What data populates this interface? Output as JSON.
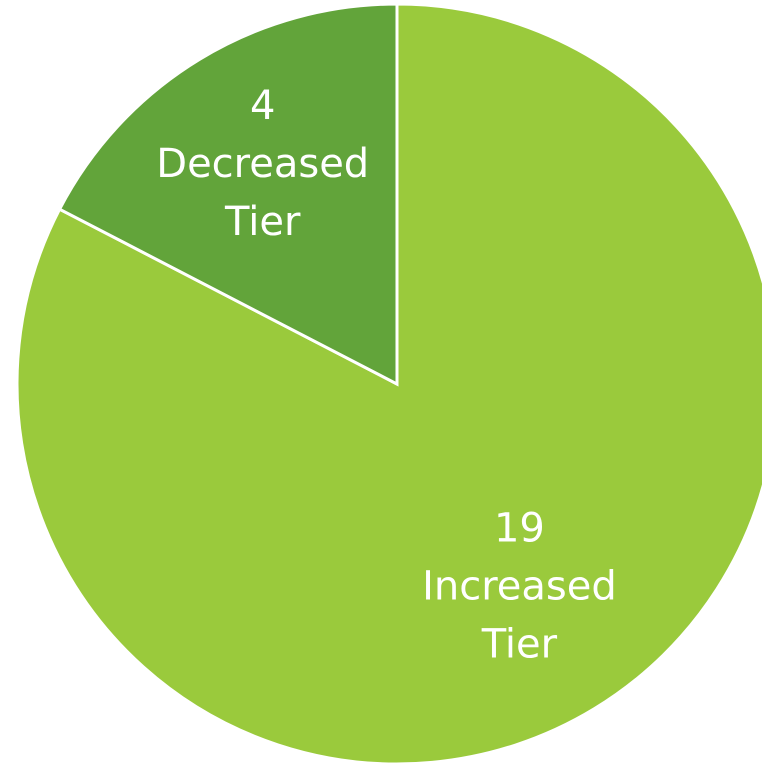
{
  "chart_data": {
    "type": "pie",
    "title": "",
    "slices": [
      {
        "value": 19,
        "label": "Increased Tier",
        "color": "#9ACA3C"
      },
      {
        "value": 4,
        "label": "Decreased Tier",
        "color": "#62A43A"
      }
    ],
    "legend": "none",
    "data_labels": "inside"
  }
}
